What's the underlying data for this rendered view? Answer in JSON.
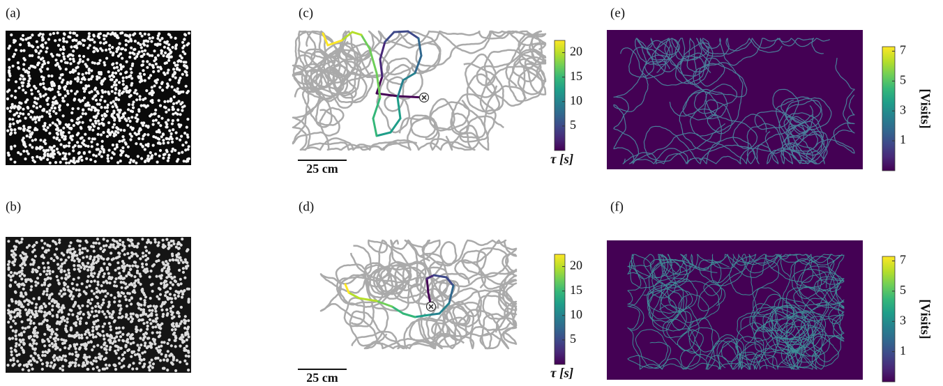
{
  "panels": {
    "a": {
      "label": "(a)"
    },
    "b": {
      "label": "(b)"
    },
    "c": {
      "label": "(c)",
      "scale_bar": "25 cm",
      "colorbar": {
        "label": "τ [s]",
        "lim": [
          0,
          22.5
        ],
        "ticks": [
          5,
          10,
          15,
          20
        ]
      }
    },
    "d": {
      "label": "(d)",
      "scale_bar": "25 cm",
      "colorbar": {
        "label": "τ [s]",
        "lim": [
          0,
          22.5
        ],
        "ticks": [
          5,
          10,
          15,
          20
        ]
      }
    },
    "e": {
      "label": "(e)",
      "colorbar": {
        "label": "[Visits]",
        "lim": [
          -1,
          7.3
        ],
        "ticks": [
          1,
          3,
          5,
          7
        ]
      }
    },
    "f": {
      "label": "(f)",
      "colorbar": {
        "label": "[Visits]",
        "lim": [
          -1,
          7.3
        ],
        "ticks": [
          1,
          3,
          5,
          7
        ]
      }
    }
  }
}
